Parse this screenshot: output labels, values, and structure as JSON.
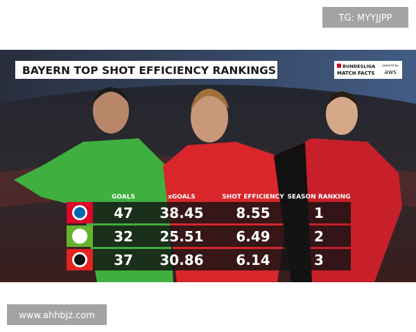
{
  "watermark_top": "TG: MYYJJPP",
  "graphic": {
    "title": "BAYERN TOP SHOT EFFICIENCY RANKINGS",
    "logo": {
      "brand": "BUNDESLIGA",
      "sub": "MATCH FACTS",
      "powered": "powered by",
      "aws": "aws"
    }
  },
  "table": {
    "columns": [
      "GOALS",
      "xGOALS",
      "SHOT EFFICIENCY",
      "SEASON RANKING"
    ],
    "rows": [
      [
        47,
        38.45,
        8.55,
        1
      ],
      [
        32,
        25.51,
        6.49,
        2
      ],
      [
        37,
        30.86,
        6.14,
        3
      ]
    ]
  },
  "watermark_bottom": "www.ahhbjz.com"
}
